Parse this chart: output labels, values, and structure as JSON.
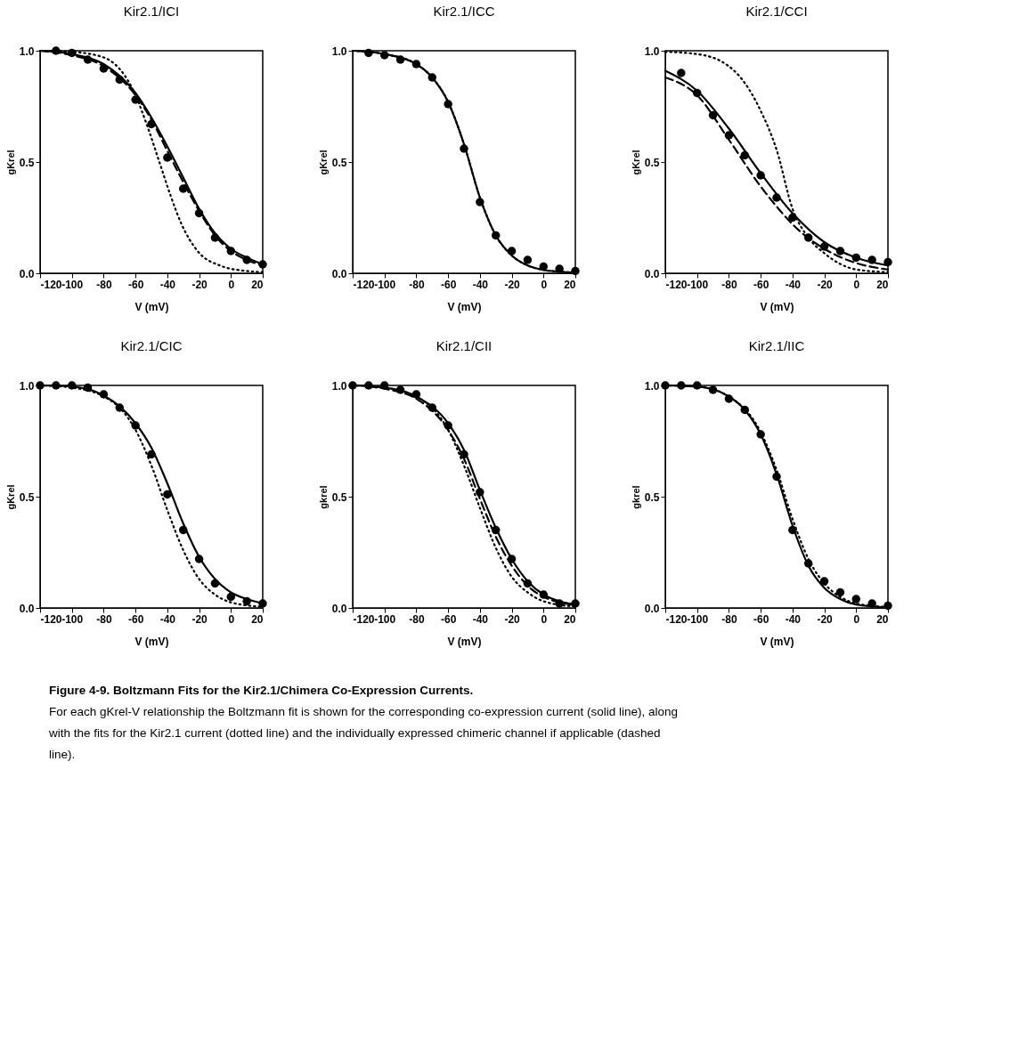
{
  "chart_data": [
    {
      "type": "line",
      "title": "Kir2.1/ICI",
      "xlabel": "V (mV)",
      "ylabel": "gKrel",
      "xlim": [
        -120,
        20
      ],
      "xticks": [
        -120,
        -100,
        -80,
        -60,
        -40,
        -20,
        0,
        20
      ],
      "ylim": [
        0,
        1
      ],
      "yticks": [
        {
          "value": 0,
          "label": "0.0"
        },
        {
          "value": 0.5,
          "label": "0.5"
        },
        {
          "value": 1,
          "label": "1.0"
        }
      ],
      "grid": false,
      "series": [
        {
          "type": "line",
          "line_style": "dotted",
          "color": "#000000",
          "x": [
            -120,
            -100,
            -80,
            -60,
            -52,
            -45,
            -38,
            -31,
            -21,
            -7,
            10,
            20
          ],
          "values": [
            1.0,
            0.995,
            0.97,
            0.8,
            0.65,
            0.5,
            0.35,
            0.22,
            0.1,
            0.035,
            0.01,
            0.005
          ]
        },
        {
          "type": "line",
          "line_style": "dashed",
          "color": "#000000",
          "x": [
            -120,
            -100,
            -80,
            -60,
            -50,
            -40,
            -30,
            -20,
            -10,
            0,
            10,
            20
          ],
          "values": [
            1.0,
            0.98,
            0.93,
            0.8,
            0.69,
            0.55,
            0.41,
            0.28,
            0.17,
            0.1,
            0.06,
            0.035
          ]
        },
        {
          "type": "line",
          "line_style": "solid",
          "color": "#000000",
          "x": [
            -120,
            -100,
            -80,
            -60,
            -50,
            -40,
            -30,
            -20,
            -10,
            0,
            10,
            20
          ],
          "values": [
            1.0,
            0.985,
            0.94,
            0.81,
            0.7,
            0.57,
            0.43,
            0.29,
            0.18,
            0.11,
            0.07,
            0.04
          ]
        },
        {
          "type": "scatter",
          "marker": "circle",
          "color": "#000000",
          "x": [
            -110,
            -100,
            -90,
            -80,
            -70,
            -60,
            -50,
            -40,
            -30,
            -20,
            -10,
            0,
            10,
            20
          ],
          "values": [
            1.0,
            0.99,
            0.96,
            0.92,
            0.87,
            0.78,
            0.67,
            0.52,
            0.38,
            0.27,
            0.16,
            0.1,
            0.06,
            0.04
          ]
        }
      ]
    },
    {
      "type": "line",
      "title": "Kir2.1/ICC",
      "xlabel": "V (mV)",
      "ylabel": "gKrel",
      "xlim": [
        -120,
        20
      ],
      "xticks": [
        -120,
        -100,
        -80,
        -60,
        -40,
        -20,
        0,
        20
      ],
      "ylim": [
        0,
        1
      ],
      "yticks": [
        {
          "value": 0,
          "label": "0.0"
        },
        {
          "value": 0.5,
          "label": "0.5"
        },
        {
          "value": 1,
          "label": "1.0"
        }
      ],
      "grid": false,
      "series": [
        {
          "type": "line",
          "line_style": "dotted",
          "color": "#000000",
          "x": [
            -120,
            -100,
            -80,
            -70,
            -60,
            -50,
            -40,
            -30,
            -20,
            -10,
            0,
            10,
            20
          ],
          "values": [
            1.0,
            0.985,
            0.94,
            0.88,
            0.77,
            0.58,
            0.34,
            0.17,
            0.08,
            0.035,
            0.015,
            0.007,
            0.003
          ]
        },
        {
          "type": "line",
          "line_style": "solid",
          "color": "#000000",
          "x": [
            -120,
            -100,
            -80,
            -70,
            -60,
            -50,
            -40,
            -30,
            -20,
            -10,
            0,
            10,
            20
          ],
          "values": [
            1.0,
            0.985,
            0.94,
            0.88,
            0.77,
            0.58,
            0.34,
            0.17,
            0.08,
            0.035,
            0.015,
            0.007,
            0.003
          ]
        },
        {
          "type": "scatter",
          "marker": "circle",
          "color": "#000000",
          "x": [
            -110,
            -100,
            -90,
            -80,
            -70,
            -60,
            -50,
            -40,
            -30,
            -20,
            -10,
            0,
            10,
            20
          ],
          "values": [
            0.99,
            0.98,
            0.96,
            0.94,
            0.88,
            0.76,
            0.56,
            0.32,
            0.17,
            0.1,
            0.06,
            0.03,
            0.02,
            0.01
          ]
        }
      ]
    },
    {
      "type": "line",
      "title": "Kir2.1/CCI",
      "xlabel": "V (mV)",
      "ylabel": "gKrel",
      "xlim": [
        -120,
        20
      ],
      "xticks": [
        -120,
        -100,
        -80,
        -60,
        -40,
        -20,
        0,
        20
      ],
      "ylim": [
        0,
        1
      ],
      "yticks": [
        {
          "value": 0,
          "label": "0.0"
        },
        {
          "value": 0.5,
          "label": "0.5"
        },
        {
          "value": 1,
          "label": "1.0"
        }
      ],
      "grid": false,
      "series": [
        {
          "type": "line",
          "line_style": "dotted",
          "color": "#000000",
          "x": [
            -120,
            -100,
            -80,
            -70,
            -60,
            -50,
            -40,
            -30,
            -20,
            0,
            20
          ],
          "values": [
            0.995,
            0.985,
            0.93,
            0.855,
            0.73,
            0.555,
            0.29,
            0.16,
            0.09,
            0.017,
            0.005
          ]
        },
        {
          "type": "line",
          "line_style": "dashed",
          "color": "#000000",
          "x": [
            -120,
            -100,
            -80,
            -60,
            -50,
            -40,
            -20,
            0,
            20
          ],
          "values": [
            0.88,
            0.8,
            0.6,
            0.39,
            0.3,
            0.22,
            0.11,
            0.046,
            0.017
          ]
        },
        {
          "type": "line",
          "line_style": "solid",
          "color": "#000000",
          "x": [
            -120,
            -100,
            -80,
            -60,
            -40,
            -20,
            0,
            20
          ],
          "values": [
            0.91,
            0.82,
            0.65,
            0.45,
            0.27,
            0.14,
            0.07,
            0.035
          ]
        },
        {
          "type": "scatter",
          "marker": "circle",
          "color": "#000000",
          "x": [
            -110,
            -100,
            -90,
            -80,
            -70,
            -60,
            -50,
            -40,
            -30,
            -20,
            -10,
            0,
            10,
            20
          ],
          "values": [
            0.9,
            0.81,
            0.71,
            0.62,
            0.53,
            0.44,
            0.34,
            0.25,
            0.16,
            0.12,
            0.1,
            0.07,
            0.06,
            0.05
          ]
        }
      ]
    },
    {
      "type": "line",
      "title": "Kir2.1/CIC",
      "xlabel": "V (mV)",
      "ylabel": "gKrel",
      "xlim": [
        -120,
        20
      ],
      "xticks": [
        -120,
        -100,
        -80,
        -60,
        -40,
        -20,
        0,
        20
      ],
      "ylim": [
        0,
        1
      ],
      "yticks": [
        {
          "value": 0,
          "label": "0.0"
        },
        {
          "value": 0.5,
          "label": "0.5"
        },
        {
          "value": 1,
          "label": "1.0"
        }
      ],
      "grid": false,
      "series": [
        {
          "type": "line",
          "line_style": "dotted",
          "color": "#000000",
          "x": [
            -120,
            -100,
            -80,
            -70,
            -60,
            -50,
            -40,
            -30,
            -20,
            -10,
            0,
            20
          ],
          "values": [
            1.0,
            0.99,
            0.95,
            0.9,
            0.8,
            0.64,
            0.44,
            0.26,
            0.13,
            0.06,
            0.025,
            0.005
          ]
        },
        {
          "type": "line",
          "line_style": "solid",
          "color": "#000000",
          "x": [
            -120,
            -100,
            -80,
            -60,
            -50,
            -40,
            -30,
            -20,
            -10,
            0,
            10,
            20
          ],
          "values": [
            1.0,
            0.995,
            0.955,
            0.83,
            0.72,
            0.56,
            0.38,
            0.23,
            0.13,
            0.07,
            0.04,
            0.02
          ]
        },
        {
          "type": "scatter",
          "marker": "circle",
          "color": "#000000",
          "x": [
            -120,
            -110,
            -100,
            -90,
            -80,
            -70,
            -60,
            -50,
            -40,
            -30,
            -20,
            -10,
            0,
            10,
            20
          ],
          "values": [
            1.0,
            1.0,
            1.0,
            0.99,
            0.96,
            0.9,
            0.82,
            0.69,
            0.51,
            0.35,
            0.22,
            0.11,
            0.05,
            0.03,
            0.02
          ]
        }
      ]
    },
    {
      "type": "line",
      "title": "Kir2.1/CII",
      "xlabel": "V (mV)",
      "ylabel": "gkrel",
      "xlim": [
        -120,
        20
      ],
      "xticks": [
        -120,
        -100,
        -80,
        -60,
        -40,
        -20,
        0,
        20
      ],
      "ylim": [
        0,
        1
      ],
      "yticks": [
        {
          "value": 0,
          "label": "0.0"
        },
        {
          "value": 0.5,
          "label": "0.5"
        },
        {
          "value": 1,
          "label": "1.0"
        }
      ],
      "grid": false,
      "series": [
        {
          "type": "line",
          "line_style": "dotted",
          "color": "#000000",
          "x": [
            -120,
            -100,
            -80,
            -60,
            -50,
            -40,
            -30,
            -20,
            -10,
            0,
            20
          ],
          "values": [
            1.0,
            0.99,
            0.95,
            0.8,
            0.64,
            0.45,
            0.27,
            0.14,
            0.07,
            0.03,
            0.006
          ]
        },
        {
          "type": "line",
          "line_style": "dashed",
          "color": "#000000",
          "x": [
            -110,
            -100,
            -80,
            -60,
            -50,
            -40,
            -30,
            -20,
            -10,
            0,
            10,
            20
          ],
          "values": [
            0.995,
            0.985,
            0.94,
            0.8,
            0.67,
            0.49,
            0.32,
            0.19,
            0.1,
            0.05,
            0.025,
            0.012
          ]
        },
        {
          "type": "line",
          "line_style": "solid",
          "color": "#000000",
          "x": [
            -120,
            -100,
            -80,
            -60,
            -50,
            -40,
            -30,
            -20,
            -10,
            0,
            10,
            20
          ],
          "values": [
            1.0,
            0.99,
            0.95,
            0.83,
            0.71,
            0.53,
            0.36,
            0.22,
            0.12,
            0.06,
            0.03,
            0.015
          ]
        },
        {
          "type": "scatter",
          "marker": "circle",
          "color": "#000000",
          "x": [
            -120,
            -110,
            -100,
            -90,
            -80,
            -70,
            -60,
            -50,
            -40,
            -30,
            -20,
            -10,
            0,
            10,
            20
          ],
          "values": [
            1.0,
            1.0,
            1.0,
            0.98,
            0.96,
            0.9,
            0.82,
            0.69,
            0.52,
            0.35,
            0.22,
            0.11,
            0.06,
            0.02,
            0.02
          ]
        }
      ]
    },
    {
      "type": "line",
      "title": "Kir2.1/IIC",
      "xlabel": "V (mV)",
      "ylabel": "gkrel",
      "xlim": [
        -120,
        20
      ],
      "xticks": [
        -120,
        -100,
        -80,
        -60,
        -40,
        -20,
        0,
        20
      ],
      "ylim": [
        0,
        1
      ],
      "yticks": [
        {
          "value": 0,
          "label": "0.0"
        },
        {
          "value": 0.5,
          "label": "0.5"
        },
        {
          "value": 1,
          "label": "1.0"
        }
      ],
      "grid": false,
      "series": [
        {
          "type": "line",
          "line_style": "dotted",
          "color": "#000000",
          "x": [
            -120,
            -100,
            -80,
            -60,
            -50,
            -40,
            -30,
            -20,
            -10,
            0,
            20
          ],
          "values": [
            1.0,
            0.995,
            0.95,
            0.79,
            0.62,
            0.4,
            0.22,
            0.11,
            0.05,
            0.02,
            0.004
          ]
        },
        {
          "type": "line",
          "line_style": "solid",
          "color": "#000000",
          "x": [
            -120,
            -100,
            -80,
            -70,
            -60,
            -50,
            -40,
            -30,
            -20,
            -10,
            0,
            20
          ],
          "values": [
            1.0,
            0.995,
            0.95,
            0.89,
            0.78,
            0.6,
            0.37,
            0.19,
            0.09,
            0.04,
            0.015,
            0.003
          ]
        },
        {
          "type": "scatter",
          "marker": "circle",
          "color": "#000000",
          "x": [
            -120,
            -110,
            -100,
            -90,
            -80,
            -70,
            -60,
            -50,
            -40,
            -30,
            -20,
            -10,
            0,
            10,
            20
          ],
          "values": [
            1.0,
            1.0,
            1.0,
            0.98,
            0.94,
            0.89,
            0.78,
            0.59,
            0.35,
            0.2,
            0.12,
            0.07,
            0.04,
            0.02,
            0.01
          ]
        }
      ]
    },
    {
      "type": "other",
      "annotations": [
        "Figure 4-9.  Boltzmann Fits for the Kir2.1/Chimera Co-Expression Currents.",
        "For each gKrel-V relationship the Boltzmann fit is shown for the corresponding co-expression current (solid line), along with the fits for the Kir2.1 current (dotted line) and the individually expressed chimeric channel if applicable (dashed line)."
      ]
    }
  ]
}
